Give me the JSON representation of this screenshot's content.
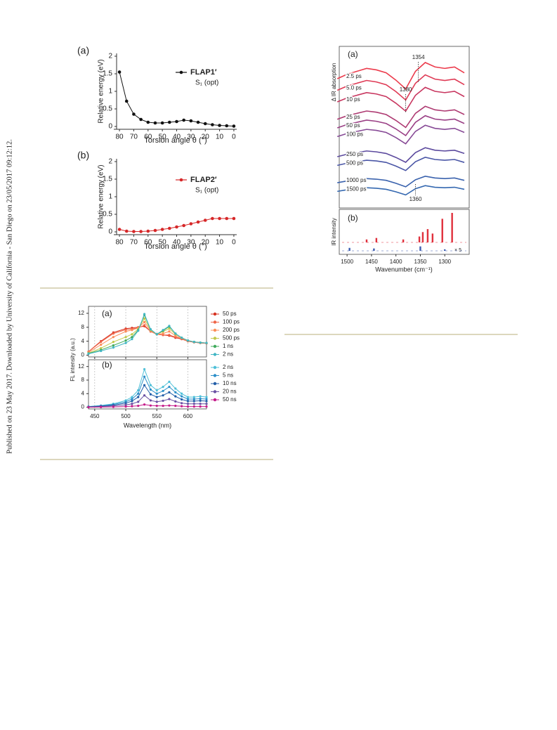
{
  "sidebar_note": "Published on 23 May 2017. Downloaded by University of California - San Diego on 23/05/2017 09:12:12.",
  "chart_data": [
    {
      "type": "line",
      "panel": "(a)",
      "ylabel": "Relative energy (eV)",
      "xlabel": "Torsion angle θ (°)",
      "x": [
        80,
        75,
        70,
        65,
        60,
        55,
        50,
        45,
        40,
        35,
        30,
        25,
        20,
        15,
        10,
        5,
        0
      ],
      "xlim": [
        82,
        -2
      ],
      "xticks": [
        80,
        70,
        60,
        50,
        40,
        30,
        20,
        10,
        0
      ],
      "ylim": [
        0,
        2
      ],
      "yticks": [
        0,
        0.5,
        1,
        1.5,
        2
      ],
      "frame": "axes",
      "markers": true,
      "legend": "upper right",
      "legend_note": "S₁ (opt)",
      "series": [
        {
          "name": "FLAP1′",
          "color": "#111111",
          "values": [
            1.55,
            0.72,
            0.35,
            0.2,
            0.12,
            0.1,
            0.1,
            0.12,
            0.14,
            0.18,
            0.16,
            0.12,
            0.08,
            0.05,
            0.03,
            0.02,
            0.01
          ]
        }
      ]
    },
    {
      "type": "line",
      "panel": "(b)",
      "ylabel": "Relative energy (eV)",
      "xlabel": "Torsion angle θ (°)",
      "x": [
        80,
        75,
        70,
        65,
        60,
        55,
        50,
        45,
        40,
        35,
        30,
        25,
        20,
        15,
        10,
        5,
        0
      ],
      "xlim": [
        82,
        -2
      ],
      "xticks": [
        80,
        70,
        60,
        50,
        40,
        30,
        20,
        10,
        0
      ],
      "ylim": [
        0,
        2
      ],
      "yticks": [
        0,
        0.5,
        1,
        1.5,
        2
      ],
      "frame": "axes",
      "markers": true,
      "legend": "upper right",
      "legend_note": "S₁ (opt)",
      "series": [
        {
          "name": "FLAP2′",
          "color": "#d62728",
          "values": [
            0.07,
            0.02,
            0.01,
            0.01,
            0.02,
            0.04,
            0.07,
            0.1,
            0.14,
            0.18,
            0.23,
            0.28,
            0.33,
            0.38,
            0.38,
            0.38,
            0.38
          ]
        }
      ]
    },
    {
      "type": "line",
      "panel": "(a)",
      "ylabel": "FL intensity (a.u.)",
      "x": [
        440,
        460,
        480,
        500,
        510,
        520,
        530,
        540,
        550,
        560,
        570,
        580,
        590,
        600,
        610,
        620,
        630
      ],
      "xlim": [
        440,
        630
      ],
      "xticks": [
        450,
        500,
        550,
        600
      ],
      "xtick_labels": false,
      "grid": "x",
      "ylim": [
        -0.5,
        14
      ],
      "yticks": [
        0,
        4,
        8,
        12
      ],
      "frame": "box",
      "markers": true,
      "legend": "right",
      "series": [
        {
          "name": "50 ps",
          "color": "#d7301f",
          "values": [
            1,
            4,
            6.5,
            7.6,
            7.8,
            8.0,
            8.3,
            6.8,
            6,
            5.8,
            5.6,
            5,
            4.6,
            4.0,
            3.7,
            3.5,
            3.4
          ]
        },
        {
          "name": "100 ps",
          "color": "#ef6548",
          "values": [
            1,
            3.8,
            6.2,
            7.3,
            7.5,
            7.8,
            8.6,
            6.8,
            6,
            5.8,
            5.8,
            5.2,
            4.7,
            4.0,
            3.7,
            3.5,
            3.4
          ]
        },
        {
          "name": "200 ps",
          "color": "#fc8d59",
          "values": [
            0.8,
            3,
            5.2,
            6.8,
            7.2,
            7.8,
            9.5,
            7,
            6.0,
            6.2,
            6.8,
            5.6,
            4.8,
            4.1,
            3.8,
            3.6,
            3.5
          ]
        },
        {
          "name": "500 ps",
          "color": "#c2c84a",
          "values": [
            0.6,
            2,
            3.8,
            5.2,
            6,
            7.5,
            10.5,
            7.2,
            6.0,
            6.8,
            7.6,
            6,
            5,
            4.2,
            3.8,
            3.6,
            3.5
          ]
        },
        {
          "name": "1 ns",
          "color": "#41ab5d",
          "values": [
            0.5,
            1.5,
            2.8,
            4.2,
            5.2,
            7.2,
            11.5,
            7.4,
            6,
            7.0,
            8.2,
            6.2,
            5,
            4.2,
            3.8,
            3.6,
            3.5
          ]
        },
        {
          "name": "2 ns",
          "color": "#41b6c4",
          "values": [
            0.4,
            1.2,
            2.2,
            3.5,
            4.6,
            7,
            11.8,
            7.4,
            6,
            7.2,
            8.4,
            6.2,
            5,
            4.2,
            3.8,
            3.6,
            3.5
          ]
        }
      ]
    },
    {
      "type": "line",
      "panel": "(b)",
      "xlabel": "Wavelength (nm)",
      "x": [
        440,
        460,
        480,
        500,
        510,
        520,
        530,
        540,
        550,
        560,
        570,
        580,
        590,
        600,
        610,
        620,
        630
      ],
      "xlim": [
        440,
        630
      ],
      "xticks": [
        450,
        500,
        550,
        600
      ],
      "grid": "x",
      "ylim": [
        -0.5,
        14
      ],
      "yticks": [
        0,
        4,
        8,
        12
      ],
      "frame": "box",
      "markers": true,
      "legend": "right",
      "series": [
        {
          "name": "2 ns",
          "color": "#4fc0d8",
          "values": [
            0.2,
            0.5,
            1,
            2,
            3,
            5,
            11.2,
            6.5,
            5,
            6,
            7.5,
            5.5,
            4,
            3,
            3,
            3.2,
            3
          ]
        },
        {
          "name": "5 ns",
          "color": "#2c8fc9",
          "values": [
            0.15,
            0.4,
            0.8,
            1.6,
            2.4,
            4,
            9,
            5.2,
            4,
            4.8,
            6,
            4.4,
            3.2,
            2.4,
            2.4,
            2.5,
            2.4
          ]
        },
        {
          "name": "10 ns",
          "color": "#225ea8",
          "values": [
            0.1,
            0.3,
            0.6,
            1.2,
            1.8,
            3,
            6.5,
            3.8,
            3,
            3.5,
            4.4,
            3.2,
            2.3,
            1.8,
            1.8,
            1.9,
            1.8
          ]
        },
        {
          "name": "20 ns",
          "color": "#6a51a3",
          "values": [
            0.05,
            0.2,
            0.4,
            0.7,
            1,
            1.6,
            3.5,
            2,
            1.6,
            1.9,
            2.4,
            1.7,
            1.2,
            1,
            1,
            1,
            1
          ]
        },
        {
          "name": "50 ns",
          "color": "#c51b8a",
          "values": [
            0,
            0.05,
            0.1,
            0.2,
            0.3,
            0.4,
            0.8,
            0.5,
            0.4,
            0.4,
            0.5,
            0.4,
            0.3,
            0.2,
            0.2,
            0.2,
            0.2
          ]
        }
      ]
    },
    {
      "type": "line",
      "panel": "(a)",
      "ylabel": "Δ IR absorption",
      "x": [
        1520,
        1500,
        1480,
        1460,
        1440,
        1420,
        1400,
        1380,
        1360,
        1340,
        1320,
        1300,
        1280,
        1260
      ],
      "xlim": [
        1516,
        1250
      ],
      "ylim": [
        1.0,
        12.0
      ],
      "frame": "box",
      "markers": false,
      "legend": "inline",
      "annotations": [
        1354,
        1380,
        1360
      ],
      "series": [
        {
          "name": "2.5 ps",
          "color": "#ec3b4c",
          "values": [
            9.8,
            10.1,
            10.3,
            10.5,
            10.4,
            10.2,
            9.7,
            9.1,
            10.3,
            10.9,
            10.6,
            10.5,
            10.6,
            10.2
          ]
        },
        {
          "name": "5.0 ps",
          "color": "#df3a55",
          "values": [
            9.01,
            9.3,
            9.49,
            9.68,
            9.58,
            9.39,
            8.92,
            8.35,
            9.49,
            10.06,
            9.77,
            9.68,
            9.77,
            9.39
          ]
        },
        {
          "name": "10 ps",
          "color": "#c8365f",
          "values": [
            8.22,
            8.49,
            8.67,
            8.85,
            8.76,
            8.58,
            8.13,
            7.59,
            8.67,
            9.21,
            8.94,
            8.85,
            8.94,
            8.58
          ]
        },
        {
          "name": "25 ps",
          "color": "#ae3a72",
          "values": [
            7.04,
            7.28,
            7.44,
            7.6,
            7.52,
            7.36,
            6.96,
            6.48,
            7.44,
            7.92,
            7.68,
            7.6,
            7.68,
            7.36
          ]
        },
        {
          "name": "50 ps",
          "color": "#9a3f85",
          "values": [
            6.45,
            6.68,
            6.83,
            6.98,
            6.9,
            6.75,
            6.38,
            5.93,
            6.83,
            7.28,
            7.05,
            6.98,
            7.05,
            6.75
          ]
        },
        {
          "name": "100 ps",
          "color": "#874a96",
          "values": [
            5.86,
            6.07,
            6.21,
            6.35,
            6.28,
            6.14,
            5.79,
            5.37,
            6.21,
            6.63,
            6.42,
            6.35,
            6.42,
            6.14
          ]
        },
        {
          "name": "250 ps",
          "color": "#5c4a9e",
          "values": [
            4.49,
            4.66,
            4.77,
            4.88,
            4.82,
            4.71,
            4.44,
            4.11,
            4.77,
            5.1,
            4.93,
            4.88,
            4.93,
            4.71
          ]
        },
        {
          "name": "500 ps",
          "color": "#4a56a6",
          "values": [
            3.9,
            4.05,
            4.15,
            4.25,
            4.2,
            4.1,
            3.85,
            3.55,
            4.15,
            4.45,
            4.3,
            4.25,
            4.3,
            4.1
          ]
        },
        {
          "name": "1000 ps",
          "color": "#3a62ad",
          "values": [
            2.72,
            2.84,
            2.92,
            3.0,
            2.96,
            2.88,
            2.68,
            2.44,
            2.92,
            3.16,
            3.04,
            3.0,
            3.04,
            2.88
          ]
        },
        {
          "name": "1500 ps",
          "color": "#3468b0",
          "values": [
            2.13,
            2.24,
            2.31,
            2.38,
            2.34,
            2.27,
            2.1,
            1.89,
            2.31,
            2.52,
            2.41,
            2.38,
            2.41,
            2.27
          ]
        }
      ]
    },
    {
      "type": "stick",
      "panel": "(b)",
      "ylabel": "IR intensity",
      "xlabel": "Wavenumber (cm⁻¹)",
      "note": "× 5",
      "xlim": [
        1516,
        1250
      ],
      "xticks": [
        1500,
        1450,
        1400,
        1350,
        1300
      ],
      "ylim": [
        0,
        1
      ],
      "frame": "box",
      "series": [
        {
          "color": "#e0303c",
          "x": [
            1460,
            1440,
            1385,
            1352,
            1345,
            1335,
            1325,
            1305,
            1285
          ],
          "values": [
            0.1,
            0.15,
            0.1,
            0.2,
            0.35,
            0.45,
            0.3,
            0.8,
            1.0
          ]
        },
        {
          "color": "#3a5bb0",
          "x": [
            1495,
            1445,
            1350,
            1300
          ],
          "values": [
            0.1,
            0.08,
            0.15,
            0.05
          ]
        }
      ]
    }
  ]
}
